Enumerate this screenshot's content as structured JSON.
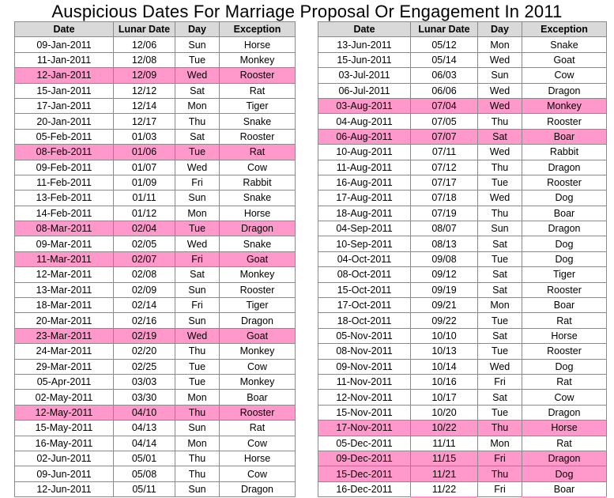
{
  "title": "Auspicious Dates For Marriage Proposal Or Engagement In 2011",
  "colors": {
    "header_bg": "#d9d9d9",
    "highlight_bg": "#ff99cc",
    "grid": "#8a8a8a"
  },
  "columns": [
    "Date",
    "Lunar Date",
    "Day",
    "Exception"
  ],
  "left_rows": [
    {
      "date": "09-Jan-2011",
      "lunar": "12/06",
      "day": "Sun",
      "exception": "Horse",
      "highlight": false
    },
    {
      "date": "11-Jan-2011",
      "lunar": "12/08",
      "day": "Tue",
      "exception": "Monkey",
      "highlight": false
    },
    {
      "date": "12-Jan-2011",
      "lunar": "12/09",
      "day": "Wed",
      "exception": "Rooster",
      "highlight": true
    },
    {
      "date": "15-Jan-2011",
      "lunar": "12/12",
      "day": "Sat",
      "exception": "Rat",
      "highlight": false
    },
    {
      "date": "17-Jan-2011",
      "lunar": "12/14",
      "day": "Mon",
      "exception": "Tiger",
      "highlight": false
    },
    {
      "date": "20-Jan-2011",
      "lunar": "12/17",
      "day": "Thu",
      "exception": "Snake",
      "highlight": false
    },
    {
      "date": "05-Feb-2011",
      "lunar": "01/03",
      "day": "Sat",
      "exception": "Rooster",
      "highlight": false
    },
    {
      "date": "08-Feb-2011",
      "lunar": "01/06",
      "day": "Tue",
      "exception": "Rat",
      "highlight": true
    },
    {
      "date": "09-Feb-2011",
      "lunar": "01/07",
      "day": "Wed",
      "exception": "Cow",
      "highlight": false
    },
    {
      "date": "11-Feb-2011",
      "lunar": "01/09",
      "day": "Fri",
      "exception": "Rabbit",
      "highlight": false
    },
    {
      "date": "13-Feb-2011",
      "lunar": "01/11",
      "day": "Sun",
      "exception": "Snake",
      "highlight": false
    },
    {
      "date": "14-Feb-2011",
      "lunar": "01/12",
      "day": "Mon",
      "exception": "Horse",
      "highlight": false
    },
    {
      "date": "08-Mar-2011",
      "lunar": "02/04",
      "day": "Tue",
      "exception": "Dragon",
      "highlight": true
    },
    {
      "date": "09-Mar-2011",
      "lunar": "02/05",
      "day": "Wed",
      "exception": "Snake",
      "highlight": false
    },
    {
      "date": "11-Mar-2011",
      "lunar": "02/07",
      "day": "Fri",
      "exception": "Goat",
      "highlight": true
    },
    {
      "date": "12-Mar-2011",
      "lunar": "02/08",
      "day": "Sat",
      "exception": "Monkey",
      "highlight": false
    },
    {
      "date": "13-Mar-2011",
      "lunar": "02/09",
      "day": "Sun",
      "exception": "Rooster",
      "highlight": false
    },
    {
      "date": "18-Mar-2011",
      "lunar": "02/14",
      "day": "Fri",
      "exception": "Tiger",
      "highlight": false
    },
    {
      "date": "20-Mar-2011",
      "lunar": "02/16",
      "day": "Sun",
      "exception": "Dragon",
      "highlight": false
    },
    {
      "date": "23-Mar-2011",
      "lunar": "02/19",
      "day": "Wed",
      "exception": "Goat",
      "highlight": true
    },
    {
      "date": "24-Mar-2011",
      "lunar": "02/20",
      "day": "Thu",
      "exception": "Monkey",
      "highlight": false
    },
    {
      "date": "29-Mar-2011",
      "lunar": "02/25",
      "day": "Tue",
      "exception": "Cow",
      "highlight": false
    },
    {
      "date": "05-Apr-2011",
      "lunar": "03/03",
      "day": "Tue",
      "exception": "Monkey",
      "highlight": false
    },
    {
      "date": "02-May-2011",
      "lunar": "03/30",
      "day": "Mon",
      "exception": "Boar",
      "highlight": false
    },
    {
      "date": "12-May-2011",
      "lunar": "04/10",
      "day": "Thu",
      "exception": "Rooster",
      "highlight": true
    },
    {
      "date": "15-May-2011",
      "lunar": "04/13",
      "day": "Sun",
      "exception": "Rat",
      "highlight": false
    },
    {
      "date": "16-May-2011",
      "lunar": "04/14",
      "day": "Mon",
      "exception": "Cow",
      "highlight": false
    },
    {
      "date": "02-Jun-2011",
      "lunar": "05/01",
      "day": "Thu",
      "exception": "Horse",
      "highlight": false
    },
    {
      "date": "09-Jun-2011",
      "lunar": "05/08",
      "day": "Thu",
      "exception": "Cow",
      "highlight": false
    },
    {
      "date": "12-Jun-2011",
      "lunar": "05/11",
      "day": "Sun",
      "exception": "Dragon",
      "highlight": false
    }
  ],
  "right_rows": [
    {
      "date": "13-Jun-2011",
      "lunar": "05/12",
      "day": "Mon",
      "exception": "Snake",
      "highlight": false
    },
    {
      "date": "15-Jun-2011",
      "lunar": "05/14",
      "day": "Wed",
      "exception": "Goat",
      "highlight": false
    },
    {
      "date": "03-Jul-2011",
      "lunar": "06/03",
      "day": "Sun",
      "exception": "Cow",
      "highlight": false
    },
    {
      "date": "06-Jul-2011",
      "lunar": "06/06",
      "day": "Wed",
      "exception": "Dragon",
      "highlight": false
    },
    {
      "date": "03-Aug-2011",
      "lunar": "07/04",
      "day": "Wed",
      "exception": "Monkey",
      "highlight": true
    },
    {
      "date": "04-Aug-2011",
      "lunar": "07/05",
      "day": "Thu",
      "exception": "Rooster",
      "highlight": false
    },
    {
      "date": "06-Aug-2011",
      "lunar": "07/07",
      "day": "Sat",
      "exception": "Boar",
      "highlight": true
    },
    {
      "date": "10-Aug-2011",
      "lunar": "07/11",
      "day": "Wed",
      "exception": "Rabbit",
      "highlight": false
    },
    {
      "date": "11-Aug-2011",
      "lunar": "07/12",
      "day": "Thu",
      "exception": "Dragon",
      "highlight": false
    },
    {
      "date": "16-Aug-2011",
      "lunar": "07/17",
      "day": "Tue",
      "exception": "Rooster",
      "highlight": false
    },
    {
      "date": "17-Aug-2011",
      "lunar": "07/18",
      "day": "Wed",
      "exception": "Dog",
      "highlight": false
    },
    {
      "date": "18-Aug-2011",
      "lunar": "07/19",
      "day": "Thu",
      "exception": "Boar",
      "highlight": false
    },
    {
      "date": "04-Sep-2011",
      "lunar": "08/07",
      "day": "Sun",
      "exception": "Dragon",
      "highlight": false
    },
    {
      "date": "10-Sep-2011",
      "lunar": "08/13",
      "day": "Sat",
      "exception": "Dog",
      "highlight": false
    },
    {
      "date": "04-Oct-2011",
      "lunar": "09/08",
      "day": "Tue",
      "exception": "Dog",
      "highlight": false
    },
    {
      "date": "08-Oct-2011",
      "lunar": "09/12",
      "day": "Sat",
      "exception": "Tiger",
      "highlight": false
    },
    {
      "date": "15-Oct-2011",
      "lunar": "09/19",
      "day": "Sat",
      "exception": "Rooster",
      "highlight": false
    },
    {
      "date": "17-Oct-2011",
      "lunar": "09/21",
      "day": "Mon",
      "exception": "Boar",
      "highlight": false
    },
    {
      "date": "18-Oct-2011",
      "lunar": "09/22",
      "day": "Tue",
      "exception": "Rat",
      "highlight": false
    },
    {
      "date": "05-Nov-2011",
      "lunar": "10/10",
      "day": "Sat",
      "exception": "Horse",
      "highlight": false
    },
    {
      "date": "08-Nov-2011",
      "lunar": "10/13",
      "day": "Tue",
      "exception": "Rooster",
      "highlight": false
    },
    {
      "date": "09-Nov-2011",
      "lunar": "10/14",
      "day": "Wed",
      "exception": "Dog",
      "highlight": false
    },
    {
      "date": "11-Nov-2011",
      "lunar": "10/16",
      "day": "Fri",
      "exception": "Rat",
      "highlight": false
    },
    {
      "date": "12-Nov-2011",
      "lunar": "10/17",
      "day": "Sat",
      "exception": "Cow",
      "highlight": false
    },
    {
      "date": "15-Nov-2011",
      "lunar": "10/20",
      "day": "Tue",
      "exception": "Dragon",
      "highlight": false
    },
    {
      "date": "17-Nov-2011",
      "lunar": "10/22",
      "day": "Thu",
      "exception": "Horse",
      "highlight": true
    },
    {
      "date": "05-Dec-2011",
      "lunar": "11/11",
      "day": "Mon",
      "exception": "Rat",
      "highlight": false
    },
    {
      "date": "09-Dec-2011",
      "lunar": "11/15",
      "day": "Fri",
      "exception": "Dragon",
      "highlight": true
    },
    {
      "date": "15-Dec-2011",
      "lunar": "11/21",
      "day": "Thu",
      "exception": "Dog",
      "highlight": true
    },
    {
      "date": "16-Dec-2011",
      "lunar": "11/22",
      "day": "Fri",
      "exception": "Boar",
      "highlight": false
    }
  ]
}
